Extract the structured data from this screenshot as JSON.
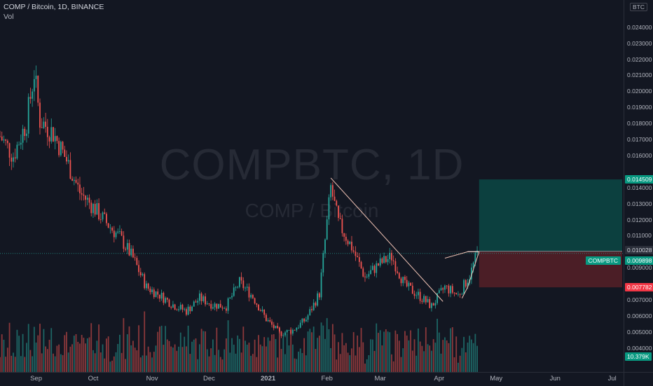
{
  "header": {
    "title": "COMP / Bitcoin, 1D, BINANCE",
    "vol_label": "Vol"
  },
  "watermark": {
    "symbol": "COMPBTC, 1D",
    "pair": "COMP / Bitcoin"
  },
  "price_axis": {
    "currency_button": "BTC",
    "ticks": [
      "0.024000",
      "0.023000",
      "0.022000",
      "0.021000",
      "0.020000",
      "0.019000",
      "0.018000",
      "0.017000",
      "0.016000",
      "0.014000",
      "0.013000",
      "0.012000",
      "0.011000",
      "0.009000",
      "0.007000",
      "0.006000",
      "0.005000",
      "0.004000"
    ],
    "labels": {
      "target": "0.014509",
      "entry": "0.010028",
      "current": "0.009898",
      "stop": "0.007782",
      "volume": "10.379K"
    },
    "symbol_tag": "COMPBTC"
  },
  "time_axis": {
    "labels": [
      "Sep",
      "Oct",
      "Nov",
      "Dec",
      "2021",
      "Feb",
      "Mar",
      "Apr",
      "May",
      "Jun",
      "Jul"
    ]
  },
  "colors": {
    "background": "#131722",
    "up": "#26a69a",
    "down": "#ef5350",
    "target_zone": "#0b4f4a",
    "stop_zone": "#5a2128",
    "trendline": "#f0c3b5"
  },
  "chart_data": {
    "type": "candlestick",
    "title": "COMP / Bitcoin, 1D, BINANCE",
    "symbol": "COMPBTC",
    "interval": "1D",
    "exchange": "BINANCE",
    "x_range": [
      "2020-08-13",
      "2021-07-07"
    ],
    "ylim": [
      0.0034,
      0.0253
    ],
    "closes": [
      {
        "date": "2020-08-13",
        "close": 0.0172
      },
      {
        "date": "2020-08-20",
        "close": 0.016
      },
      {
        "date": "2020-08-27",
        "close": 0.0181
      },
      {
        "date": "2020-08-31",
        "close": 0.0212
      },
      {
        "date": "2020-09-03",
        "close": 0.0182
      },
      {
        "date": "2020-09-10",
        "close": 0.0174
      },
      {
        "date": "2020-09-17",
        "close": 0.0157
      },
      {
        "date": "2020-09-24",
        "close": 0.0137
      },
      {
        "date": "2020-10-01",
        "close": 0.0128
      },
      {
        "date": "2020-10-08",
        "close": 0.0118
      },
      {
        "date": "2020-10-15",
        "close": 0.0109
      },
      {
        "date": "2020-10-22",
        "close": 0.0096
      },
      {
        "date": "2020-10-29",
        "close": 0.0078
      },
      {
        "date": "2020-11-05",
        "close": 0.0073
      },
      {
        "date": "2020-11-12",
        "close": 0.0067
      },
      {
        "date": "2020-11-19",
        "close": 0.0063
      },
      {
        "date": "2020-11-26",
        "close": 0.0071
      },
      {
        "date": "2020-12-03",
        "close": 0.0067
      },
      {
        "date": "2020-12-10",
        "close": 0.0066
      },
      {
        "date": "2020-12-17",
        "close": 0.0081
      },
      {
        "date": "2020-12-24",
        "close": 0.0072
      },
      {
        "date": "2020-12-31",
        "close": 0.0058
      },
      {
        "date": "2021-01-07",
        "close": 0.0049
      },
      {
        "date": "2021-01-14",
        "close": 0.0051
      },
      {
        "date": "2021-01-21",
        "close": 0.0058
      },
      {
        "date": "2021-01-28",
        "close": 0.0074
      },
      {
        "date": "2021-02-03",
        "close": 0.014
      },
      {
        "date": "2021-02-07",
        "close": 0.0118
      },
      {
        "date": "2021-02-14",
        "close": 0.0103
      },
      {
        "date": "2021-02-21",
        "close": 0.0084
      },
      {
        "date": "2021-02-28",
        "close": 0.0092
      },
      {
        "date": "2021-03-07",
        "close": 0.0097
      },
      {
        "date": "2021-03-14",
        "close": 0.0079
      },
      {
        "date": "2021-03-21",
        "close": 0.0073
      },
      {
        "date": "2021-03-28",
        "close": 0.0066
      },
      {
        "date": "2021-04-04",
        "close": 0.0078
      },
      {
        "date": "2021-04-11",
        "close": 0.0073
      },
      {
        "date": "2021-04-17",
        "close": 0.0085
      },
      {
        "date": "2021-04-21",
        "close": 0.0099
      }
    ],
    "current_price": 0.009898,
    "long_position": {
      "entry": 0.010028,
      "target": 0.014509,
      "stop": 0.007782
    },
    "last_volume": "10.379K",
    "series": [
      {
        "name": "COMPBTC",
        "type": "candlestick"
      },
      {
        "name": "Vol",
        "type": "volume"
      }
    ]
  }
}
